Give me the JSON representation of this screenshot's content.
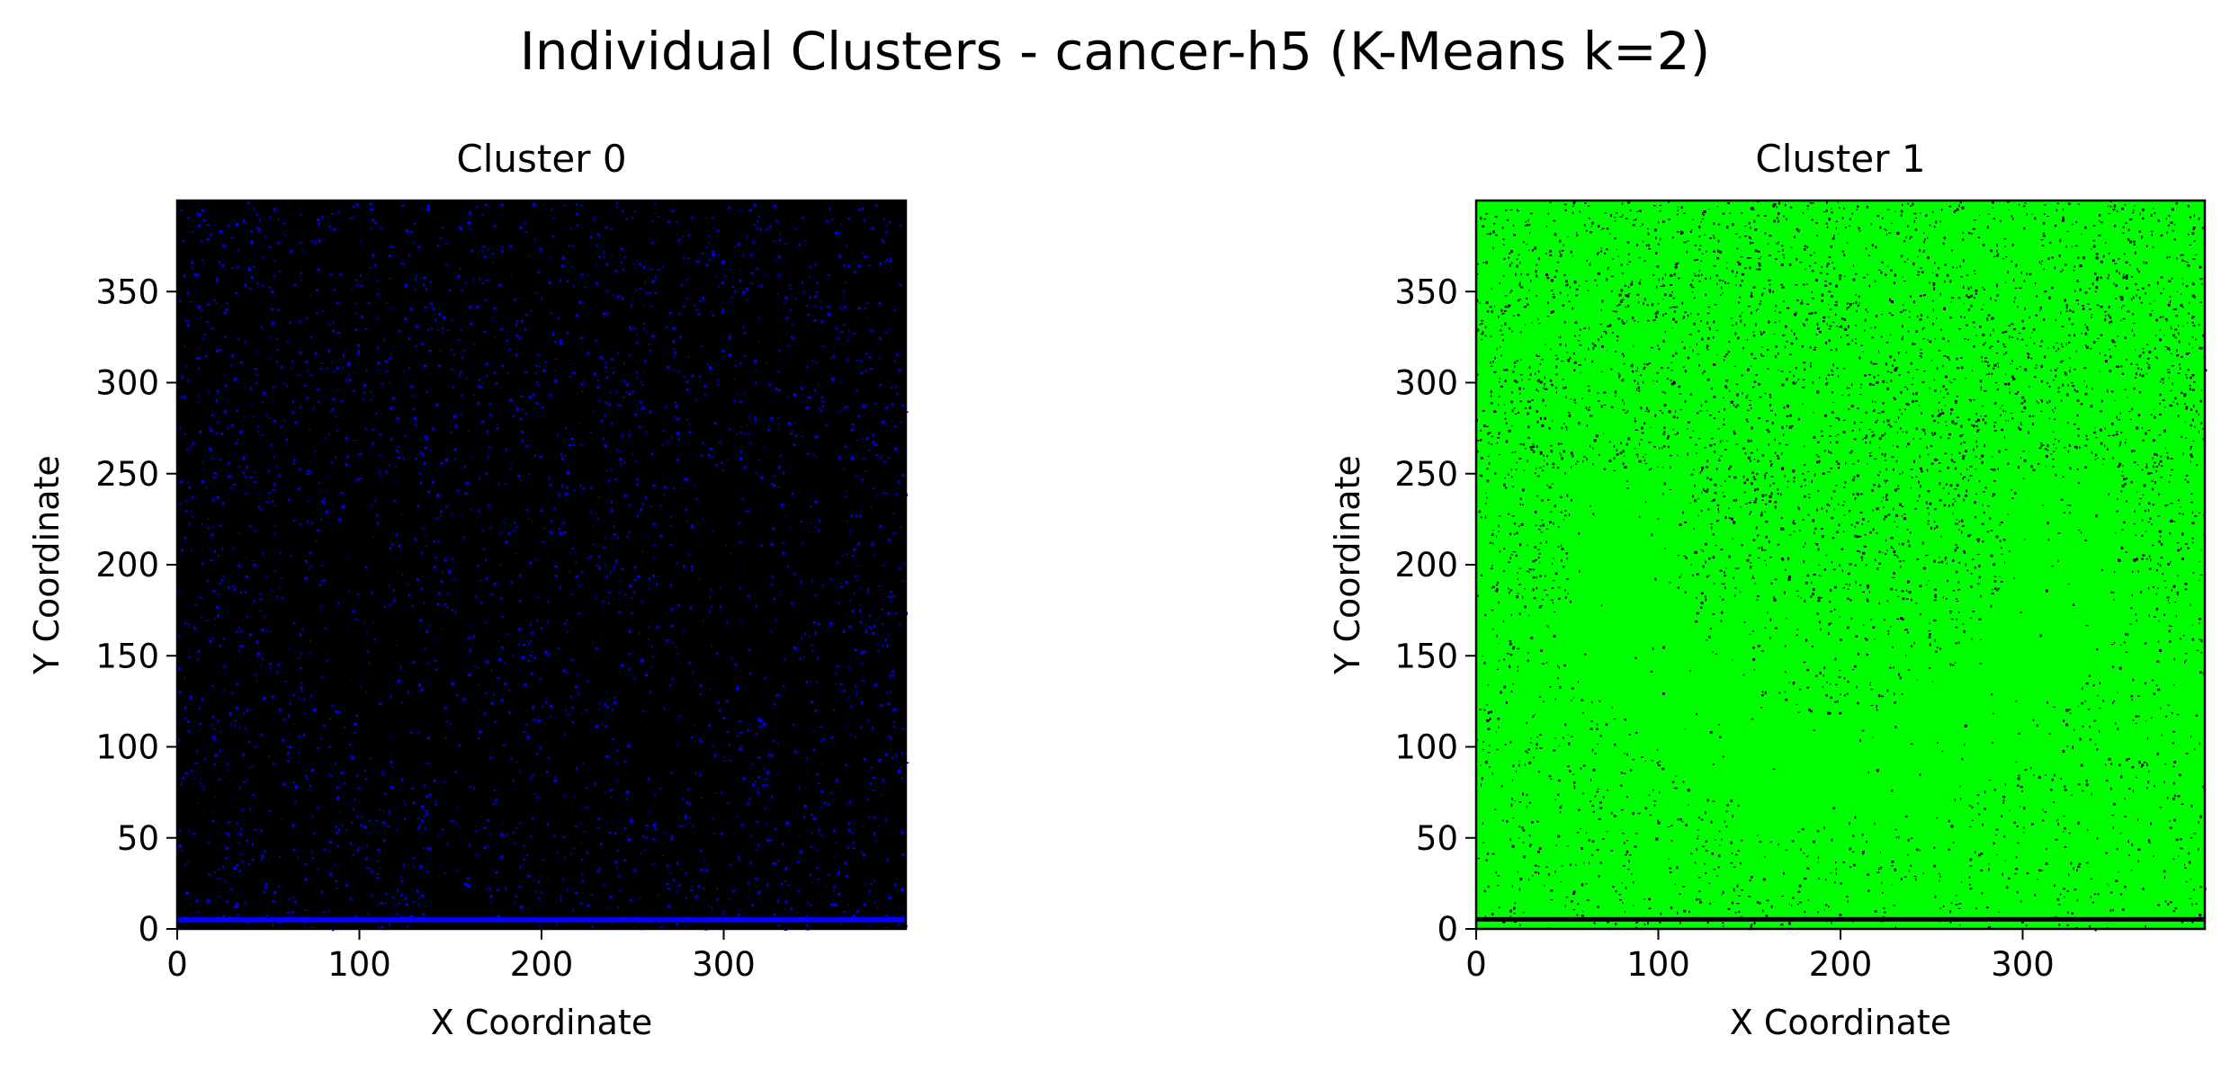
{
  "figure_title": "Individual Clusters - cancer-h5 (K-Means k=2)",
  "chart_data": [
    {
      "type": "scatter",
      "title": "Cluster 0",
      "xlabel": "X Coordinate",
      "ylabel": "Y Coordinate",
      "xlim": [
        0,
        400
      ],
      "ylim": [
        0,
        400
      ],
      "xticks": [
        0,
        100,
        200,
        300
      ],
      "yticks": [
        0,
        50,
        100,
        150,
        200,
        250,
        300,
        350
      ],
      "grid": false,
      "background_color": "#000000",
      "point_color": "#0000ff",
      "point_density": "sparse"
    },
    {
      "type": "scatter",
      "title": "Cluster 1",
      "xlabel": "X Coordinate",
      "ylabel": "Y Coordinate",
      "xlim": [
        0,
        400
      ],
      "ylim": [
        0,
        400
      ],
      "xticks": [
        0,
        100,
        200,
        300
      ],
      "yticks": [
        0,
        50,
        100,
        150,
        200,
        250,
        300,
        350
      ],
      "grid": false,
      "background_color": "#000000",
      "point_color": "#00ff00",
      "point_density": "dense"
    }
  ]
}
